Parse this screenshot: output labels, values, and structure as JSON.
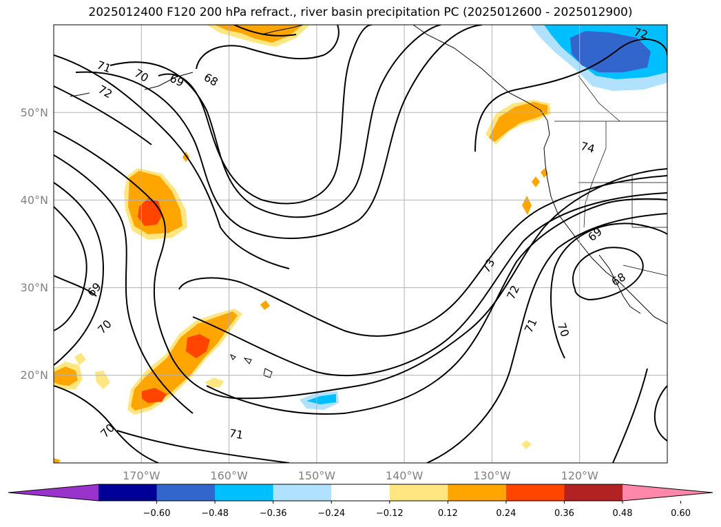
{
  "title": "2025012400 F120 200 hPa refract., river basin precipitation PC (2025012600 - 2025012900)",
  "lon_ticks": [
    "170°W",
    "160°W",
    "150°W",
    "140°W",
    "130°W",
    "120°W"
  ],
  "lat_ticks": [
    "50°N",
    "40°N",
    "30°N",
    "20°N"
  ],
  "colorbar": {
    "ticks": [
      "−0.60",
      "−0.48",
      "−0.36",
      "−0.24",
      "−0.12",
      "0.12",
      "0.24",
      "0.36",
      "0.48",
      "0.60"
    ],
    "colors": [
      "#9933cc",
      "#000099",
      "#3366cc",
      "#00bfff",
      "#b0e2ff",
      "#ffffff",
      "#ffe680",
      "#ffa500",
      "#ff4500",
      "#b22222",
      "#ff88aa"
    ]
  },
  "contour_labels": [
    "71",
    "70",
    "69",
    "68",
    "72",
    "72",
    "74",
    "73",
    "72",
    "71",
    "70",
    "69",
    "68",
    "69",
    "70",
    "70",
    "71"
  ],
  "map": {
    "lon_range": [
      -180,
      -110
    ],
    "lat_range": [
      10,
      60
    ],
    "grid": true
  }
}
